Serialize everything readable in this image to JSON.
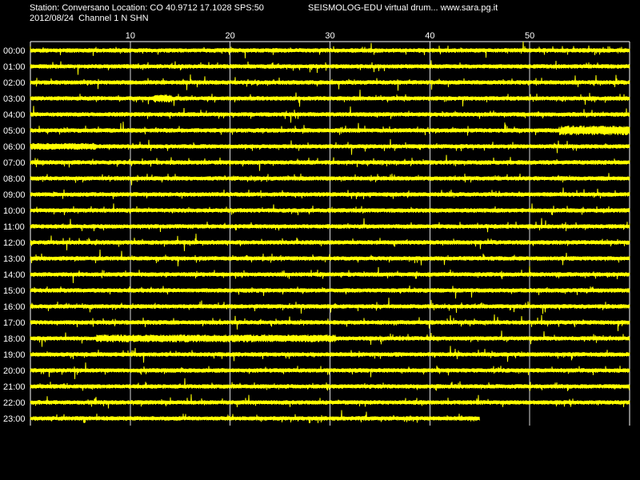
{
  "header": {
    "station_line": "Station: Conversano Location: CO 40.9712 17.1028 SPS:50",
    "date_line": "2012/08/24  Channel 1 N SHN",
    "product_line": "SEISMOLOG-EDU virtual drum... www.sara.pg.it"
  },
  "colors": {
    "background": "#000000",
    "trace": "#ffff00",
    "grid": "#ffffff",
    "text": "#ffffff"
  },
  "chart_data": {
    "type": "line",
    "title": "",
    "xlabel": "",
    "ylabel": "",
    "x_range": [
      0,
      60
    ],
    "x_ticks": [
      10,
      20,
      30,
      40,
      50
    ],
    "grid": "vertical",
    "rows": [
      {
        "label": "00:00",
        "end_minute": 60
      },
      {
        "label": "01:00",
        "end_minute": 60
      },
      {
        "label": "02:00",
        "end_minute": 60
      },
      {
        "label": "03:00",
        "end_minute": 60
      },
      {
        "label": "04:00",
        "end_minute": 60
      },
      {
        "label": "05:00",
        "end_minute": 60
      },
      {
        "label": "06:00",
        "end_minute": 60
      },
      {
        "label": "07:00",
        "end_minute": 60
      },
      {
        "label": "08:00",
        "end_minute": 60
      },
      {
        "label": "09:00",
        "end_minute": 60
      },
      {
        "label": "10:00",
        "end_minute": 60
      },
      {
        "label": "11:00",
        "end_minute": 60
      },
      {
        "label": "12:00",
        "end_minute": 60
      },
      {
        "label": "13:00",
        "end_minute": 60
      },
      {
        "label": "14:00",
        "end_minute": 60
      },
      {
        "label": "15:00",
        "end_minute": 60
      },
      {
        "label": "16:00",
        "end_minute": 60
      },
      {
        "label": "17:00",
        "end_minute": 60
      },
      {
        "label": "18:00",
        "end_minute": 60
      },
      {
        "label": "19:00",
        "end_minute": 60
      },
      {
        "label": "20:00",
        "end_minute": 60
      },
      {
        "label": "21:00",
        "end_minute": 60
      },
      {
        "label": "22:00",
        "end_minute": 60
      },
      {
        "label": "23:00",
        "end_minute": 45
      }
    ]
  }
}
